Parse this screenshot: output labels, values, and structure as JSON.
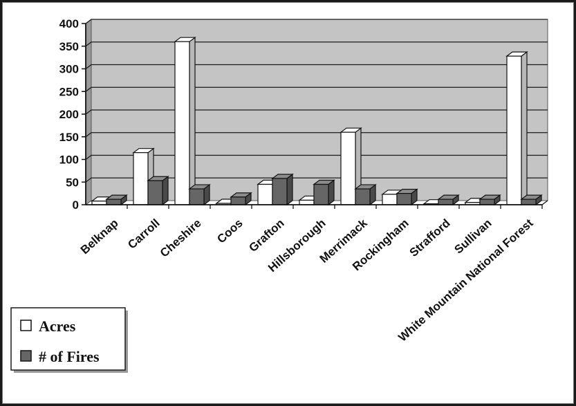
{
  "chart_data": {
    "type": "bar",
    "bar_style": "3d-clustered",
    "title": "",
    "xlabel": "",
    "ylabel": "",
    "ylim": [
      0,
      400
    ],
    "yticks": [
      0,
      50,
      100,
      150,
      200,
      250,
      300,
      350,
      400
    ],
    "grid": true,
    "legend_position": "bottom-left",
    "categories": [
      "Belknap",
      "Carroll",
      "Cheshire",
      "Coos",
      "Grafton",
      "Hillsborough",
      "Merrimack",
      "Rockingham",
      "Strafford",
      "Sullivan",
      "White Mountain National Forest"
    ],
    "series": [
      {
        "name": "Acres",
        "color": "#ffffff",
        "values": [
          8,
          115,
          360,
          3,
          45,
          10,
          160,
          23,
          2,
          5,
          328
        ]
      },
      {
        "name": "# of Fires",
        "color": "#666666",
        "values": [
          12,
          53,
          35,
          17,
          58,
          45,
          35,
          25,
          12,
          12,
          12
        ]
      }
    ],
    "colors": {
      "plot_background": "#c4c4c4",
      "gridline": "#1a1a1a",
      "bar_outline": "#111111"
    }
  }
}
